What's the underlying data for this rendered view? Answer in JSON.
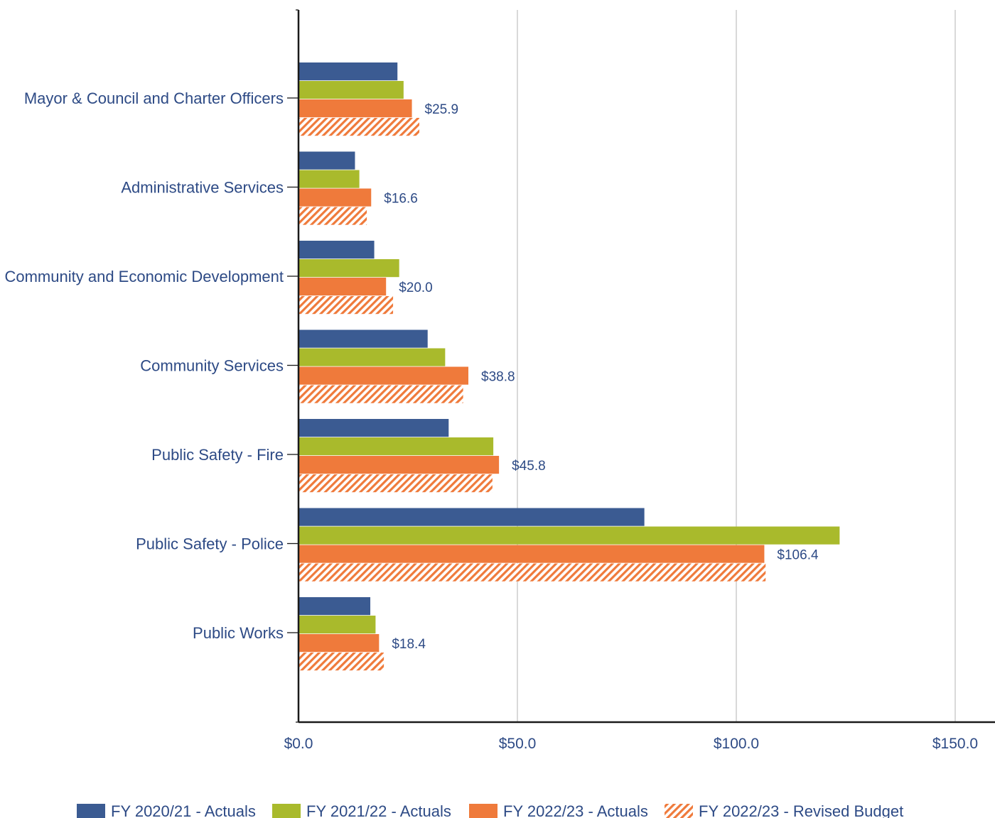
{
  "chart_data": {
    "type": "bar",
    "orientation": "horizontal",
    "categories": [
      "Mayor & Council and Charter Officers",
      "Administrative Services",
      "Community and Economic Development",
      "Community Services",
      "Public Safety - Fire",
      "Public Safety - Police",
      "Public Works"
    ],
    "series": [
      {
        "name": "FY 2020/21 - Actuals",
        "color": "#3b5b92",
        "pattern": "solid",
        "values": [
          22.6,
          12.9,
          17.3,
          29.5,
          34.3,
          79.0,
          16.4
        ]
      },
      {
        "name": "FY 2021/22 - Actuals",
        "color": "#a9ba2c",
        "pattern": "solid",
        "values": [
          24.0,
          13.9,
          23.0,
          33.5,
          44.5,
          123.6,
          17.6
        ]
      },
      {
        "name": "FY 2022/23 - Actuals",
        "color": "#ef7a3b",
        "pattern": "solid",
        "values": [
          25.9,
          16.6,
          20.0,
          38.8,
          45.8,
          106.4,
          18.4
        ]
      },
      {
        "name": "FY 2022/23 - Revised Budget",
        "color": "#ef7a3b",
        "pattern": "hatched",
        "values": [
          27.6,
          15.6,
          21.6,
          37.6,
          44.3,
          106.7,
          19.5
        ]
      }
    ],
    "data_labels": [
      "$25.9",
      "$16.6",
      "$20.0",
      "$38.8",
      "$45.8",
      "$106.4",
      "$18.4"
    ],
    "x_ticks": [
      0,
      50,
      100,
      150
    ],
    "x_tick_labels": [
      "$0.0",
      "$50.0",
      "$100.0",
      "$150.0"
    ],
    "xlim": [
      0,
      159
    ],
    "grid": "vertical",
    "legend_position": "bottom"
  }
}
